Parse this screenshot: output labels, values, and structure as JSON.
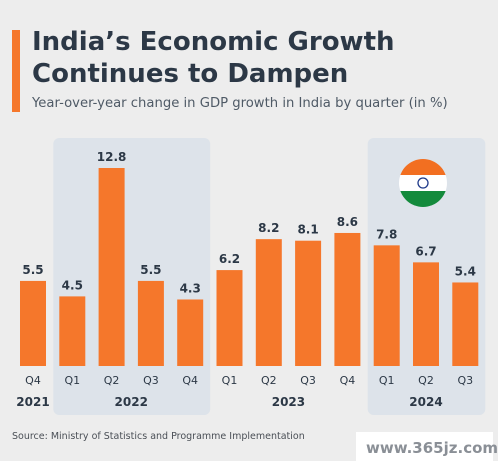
{
  "header": {
    "title_line1": "India’s Economic Growth",
    "title_line2": "Continues to Dampen",
    "subtitle": "Year-over-year change in GDP growth in India by quarter (in %)"
  },
  "footer": {
    "source": "Source: Ministry of Statistics and Programme Implementation",
    "watermark": "www.365jz.com"
  },
  "colors": {
    "bar": "#f5772b",
    "accent": "#f5772b",
    "highlight_panel": "#dde3ea",
    "title": "#2c3846",
    "label": "#2c3846"
  },
  "flag_icon": "india-flag-icon",
  "chart_data": {
    "type": "bar",
    "categories": [
      "Q4",
      "Q1",
      "Q2",
      "Q3",
      "Q4",
      "Q1",
      "Q2",
      "Q3",
      "Q4",
      "Q1",
      "Q2",
      "Q3"
    ],
    "year_groups": [
      {
        "label": "2021",
        "from": 0,
        "to": 0
      },
      {
        "label": "2022",
        "from": 1,
        "to": 4
      },
      {
        "label": "2023",
        "from": 5,
        "to": 8
      },
      {
        "label": "2024",
        "from": 9,
        "to": 11
      }
    ],
    "highlighted_groups": [
      "2022",
      "2024"
    ],
    "values": [
      5.5,
      4.5,
      12.8,
      5.5,
      4.3,
      6.2,
      8.2,
      8.1,
      8.6,
      7.8,
      6.7,
      5.4
    ],
    "value_labels": [
      "5.5",
      "4.5",
      "12.8",
      "5.5",
      "4.3",
      "6.2",
      "8.2",
      "8.1",
      "8.6",
      "7.8",
      "6.7",
      "5.4"
    ],
    "ylim": [
      0,
      12.8
    ],
    "grid": false,
    "legend": "none"
  }
}
